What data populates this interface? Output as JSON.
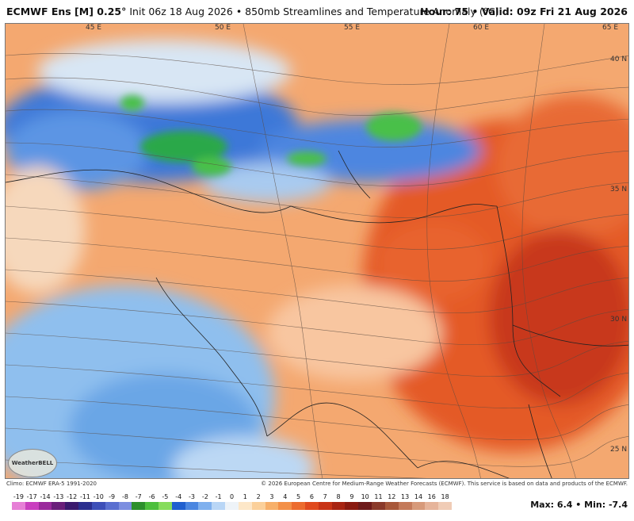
{
  "header": {
    "model": "ECMWF Ens [M] 0.25°",
    "init": "Init 06z 18 Aug 2026",
    "bullet": "•",
    "product": "850mb Streamlines and Temperature Anomaly (°C)",
    "hour": "Hour: 75",
    "valid": "Valid: 09z Fri 21 Aug 2026"
  },
  "map": {
    "lon_labels": [
      "45 E",
      "50 E",
      "55 E",
      "60 E",
      "65 E"
    ],
    "lat_labels": [
      "40 N",
      "35 N",
      "30 N",
      "25 N"
    ]
  },
  "logo": {
    "text": "WeatherBELL"
  },
  "footer": {
    "climo": "Climo: ECMWF ERA-5 1991-2020",
    "credit": "© 2026 European Centre for Medium-Range Weather Forecasts (ECMWF). This service is based on data and products of the ECMWF."
  },
  "colorbar": {
    "ticks": [
      "-19",
      "-17",
      "-14",
      "-13",
      "-12",
      "-11",
      "-10",
      "-9",
      "-8",
      "-7",
      "-6",
      "-5",
      "-4",
      "-3",
      "-2",
      "-1",
      "0",
      "1",
      "2",
      "3",
      "4",
      "5",
      "6",
      "7",
      "8",
      "9",
      "10",
      "11",
      "12",
      "13",
      "14",
      "16",
      "18"
    ],
    "colors": [
      "#e67fd6",
      "#c93fbf",
      "#9a2a9c",
      "#6a1f7a",
      "#3b1a6e",
      "#2b2f8f",
      "#3d4fb8",
      "#5a6fd0",
      "#7c8ee0",
      "#2d8f2d",
      "#4cbf3c",
      "#86dc5c",
      "#1f5fcf",
      "#4a86e0",
      "#7fb0ee",
      "#b9d6f6",
      "#eef3f8",
      "#fde7c8",
      "#fbd09a",
      "#f7b06a",
      "#f39048",
      "#ec6c2e",
      "#e04a1e",
      "#c83416",
      "#a82412",
      "#8a1a10",
      "#6e1a1a",
      "#8a3a2a",
      "#a8583a",
      "#c47a5a",
      "#d79a7a",
      "#e6b49a",
      "#f0ccb6"
    ]
  },
  "stats": {
    "max_label": "Max:",
    "max_value": "6.4",
    "min_label": "Min:",
    "min_value": "-7.4",
    "separator": "•"
  },
  "palette": {
    "warm": "#f39048",
    "hot": "#e04a1e",
    "cool": "#7fb0ee",
    "cold": "#1f5fcf",
    "green": "#4cbf3c"
  }
}
